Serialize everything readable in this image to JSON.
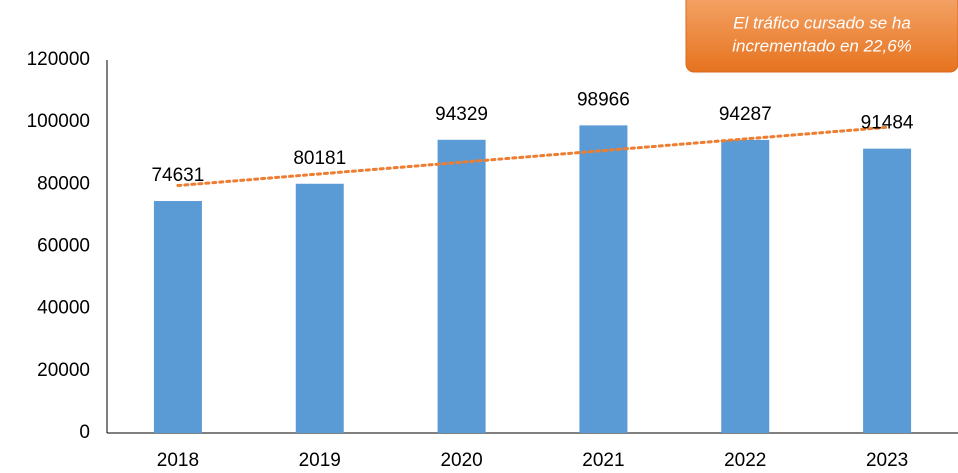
{
  "chart_data": {
    "type": "bar",
    "categories": [
      "2018",
      "2019",
      "2020",
      "2021",
      "2022",
      "2023"
    ],
    "values": [
      74631,
      80181,
      94329,
      98966,
      94287,
      91484
    ],
    "color": "#5b9bd5",
    "ylim": [
      0,
      120000
    ],
    "yticks": [
      0,
      20000,
      40000,
      60000,
      80000,
      100000,
      120000
    ],
    "grid": false,
    "trendline": {
      "type": "linear",
      "color": "#ed7d31"
    },
    "annotation": [
      "El tráfico cursado se ha",
      "incrementado en 22,6%"
    ]
  }
}
